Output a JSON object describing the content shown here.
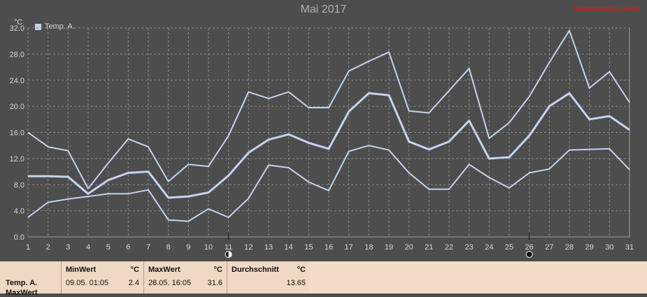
{
  "header": {
    "title": "Mai 2017",
    "red_label": "Wetterstation Hehe",
    "unit": "°C",
    "legend_label": "Temp. A."
  },
  "chart_data": {
    "type": "line",
    "title": "Mai 2017",
    "ylabel": "°C",
    "xlabel": "",
    "ylim": [
      0,
      32
    ],
    "yticks": [
      "0.0",
      "4.0",
      "8.0",
      "12.0",
      "16.0",
      "20.0",
      "24.0",
      "28.0",
      "32.0"
    ],
    "x": [
      "1",
      "2",
      "3",
      "4",
      "5",
      "6",
      "7",
      "8",
      "9",
      "10",
      "11",
      "12",
      "13",
      "14",
      "15",
      "16",
      "17",
      "18",
      "19",
      "20",
      "21",
      "22",
      "23",
      "24",
      "25",
      "26",
      "27",
      "28",
      "29",
      "30",
      "31"
    ],
    "grid": true,
    "legend": "top-left",
    "series": [
      {
        "name": "Temp. A.",
        "role": "max",
        "values": [
          16.0,
          13.8,
          13.2,
          7.4,
          11.3,
          15.0,
          13.8,
          8.5,
          11.1,
          10.8,
          15.5,
          22.2,
          21.2,
          22.2,
          19.8,
          19.8,
          25.4,
          26.9,
          28.3,
          19.3,
          19.0,
          22.4,
          25.8,
          15.1,
          17.5,
          21.5,
          26.7,
          31.6,
          22.8,
          25.3,
          20.6
        ]
      },
      {
        "name": "Temp. A.",
        "role": "mean",
        "values": [
          9.3,
          9.3,
          9.2,
          6.6,
          8.7,
          9.8,
          10.0,
          6.0,
          6.2,
          6.8,
          9.4,
          12.9,
          14.9,
          15.7,
          14.4,
          13.5,
          19.2,
          22.0,
          21.7,
          14.6,
          13.4,
          14.6,
          17.8,
          12.0,
          12.2,
          15.5,
          20.0,
          22.0,
          18.0,
          18.5,
          16.4
        ]
      },
      {
        "name": "Temp. A.",
        "role": "min",
        "values": [
          3.0,
          5.3,
          5.8,
          6.2,
          6.6,
          6.6,
          7.2,
          2.6,
          2.4,
          4.3,
          3.0,
          5.9,
          11.0,
          10.6,
          8.4,
          7.1,
          13.1,
          14.0,
          13.3,
          9.8,
          7.3,
          7.3,
          11.1,
          9.1,
          7.5,
          9.8,
          10.4,
          13.3,
          13.4,
          13.5,
          10.3
        ]
      }
    ],
    "markers": [
      {
        "x": "11",
        "symbol": "first-quarter-moon"
      },
      {
        "x": "26",
        "symbol": "new-moon"
      }
    ],
    "colors": {
      "line": "#c5d3ef",
      "background": "#4d4d4d",
      "grid": "#8a8a8a",
      "axis_text": "#d8d8d8"
    }
  },
  "stats": {
    "series_label": "Temp. A.",
    "series_label_2": "MaxWert",
    "unit": "°C",
    "min": {
      "header": "MinWert",
      "datetime": "09.05.  01:05",
      "value": "2.4"
    },
    "max": {
      "header": "MaxWert",
      "datetime": "28.05.  16:05",
      "value": "31.6"
    },
    "avg": {
      "header": "Durchschnitt",
      "value": "13.65"
    }
  }
}
